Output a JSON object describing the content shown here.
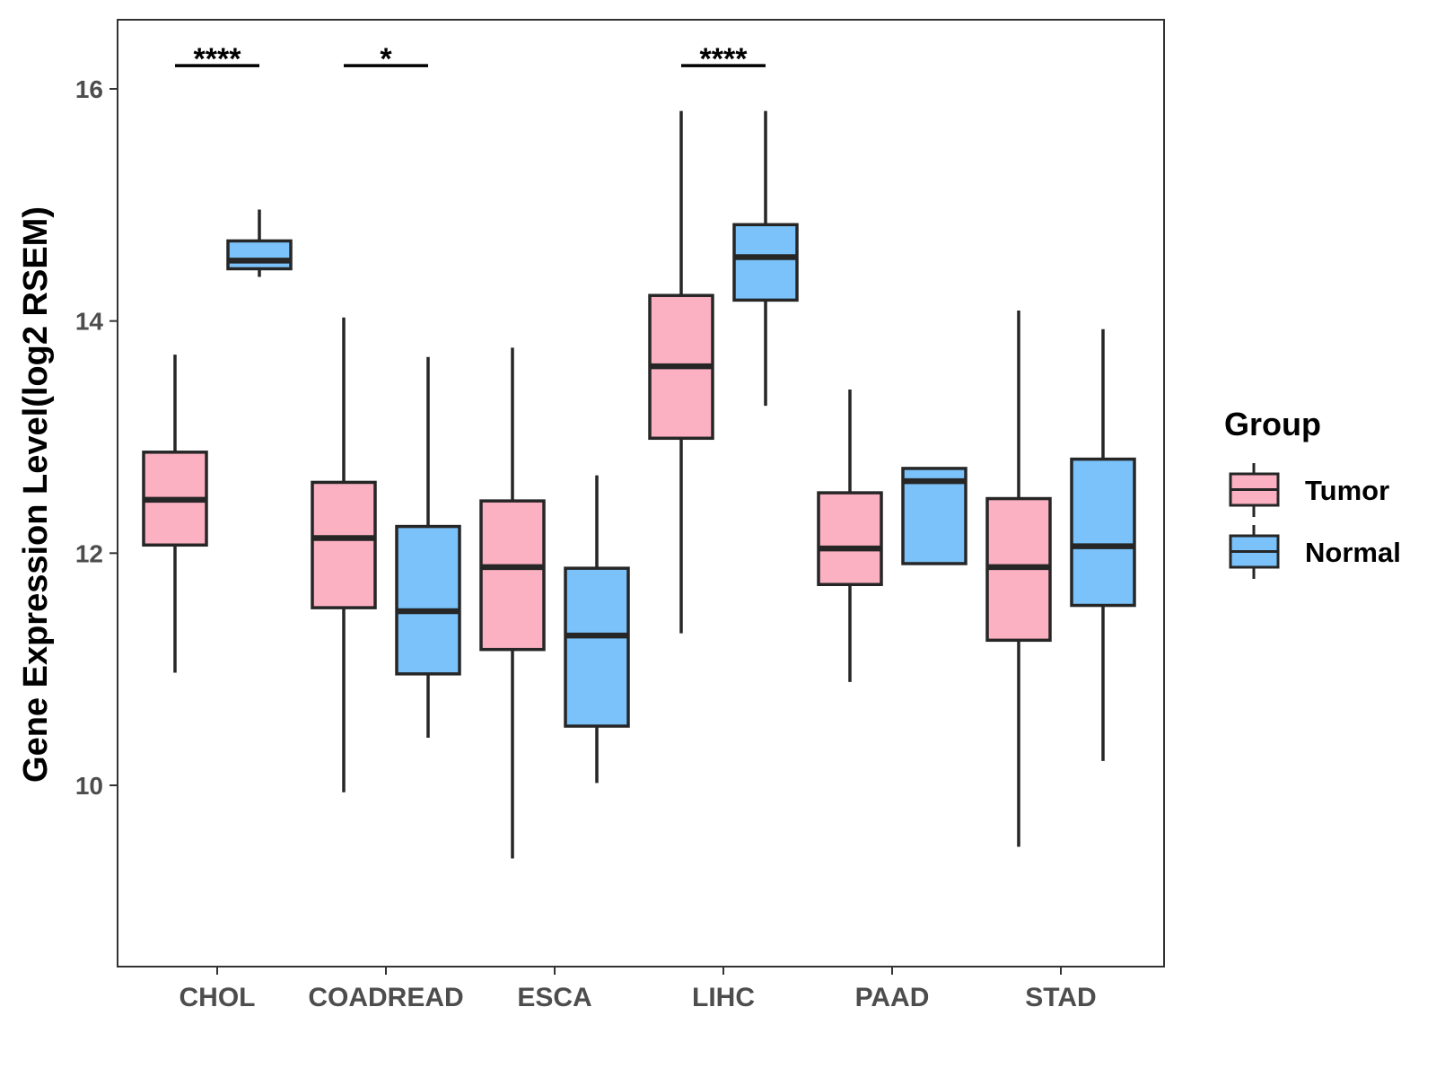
{
  "chart_data": {
    "type": "boxplot",
    "title": "",
    "xlabel": "",
    "ylabel": "Gene Expression Level(log2 RSEM)",
    "ylim": [
      8.45,
      16.6
    ],
    "yticks": [
      10,
      12,
      14,
      16
    ],
    "categories": [
      "CHOL",
      "COADREAD",
      "ESCA",
      "LIHC",
      "PAAD",
      "STAD"
    ],
    "legend": {
      "title": "Group",
      "position": "right"
    },
    "series": [
      {
        "name": "Tumor",
        "color": "#fbb1c2",
        "boxes": [
          {
            "whisker_low": 10.97,
            "q1": 12.07,
            "median": 12.46,
            "q3": 12.87,
            "whisker_high": 13.71
          },
          {
            "whisker_low": 9.94,
            "q1": 11.53,
            "median": 12.13,
            "q3": 12.61,
            "whisker_high": 14.03
          },
          {
            "whisker_low": 9.37,
            "q1": 11.17,
            "median": 11.88,
            "q3": 12.45,
            "whisker_high": 13.77
          },
          {
            "whisker_low": 11.31,
            "q1": 12.99,
            "median": 13.61,
            "q3": 14.22,
            "whisker_high": 15.81
          },
          {
            "whisker_low": 10.89,
            "q1": 11.73,
            "median": 12.04,
            "q3": 12.52,
            "whisker_high": 13.41
          },
          {
            "whisker_low": 9.47,
            "q1": 11.25,
            "median": 11.88,
            "q3": 12.47,
            "whisker_high": 14.09
          }
        ]
      },
      {
        "name": "Normal",
        "color": "#7ac2f9",
        "boxes": [
          {
            "whisker_low": 14.38,
            "q1": 14.45,
            "median": 14.52,
            "q3": 14.69,
            "whisker_high": 14.96
          },
          {
            "whisker_low": 10.41,
            "q1": 10.96,
            "median": 11.5,
            "q3": 12.23,
            "whisker_high": 13.69
          },
          {
            "whisker_low": 10.02,
            "q1": 10.51,
            "median": 11.29,
            "q3": 11.87,
            "whisker_high": 12.67
          },
          {
            "whisker_low": 13.27,
            "q1": 14.18,
            "median": 14.55,
            "q3": 14.83,
            "whisker_high": 15.81
          },
          {
            "whisker_low": 11.91,
            "q1": 11.91,
            "median": 12.62,
            "q3": 12.73,
            "whisker_high": 12.73
          },
          {
            "whisker_low": 10.21,
            "q1": 11.55,
            "median": 12.06,
            "q3": 12.81,
            "whisker_high": 13.93
          }
        ]
      }
    ],
    "annotations": [
      {
        "category": "CHOL",
        "text": "****",
        "y": 16.2
      },
      {
        "category": "COADREAD",
        "text": "*",
        "y": 16.2
      },
      {
        "category": "LIHC",
        "text": "****",
        "y": 16.2
      }
    ]
  }
}
